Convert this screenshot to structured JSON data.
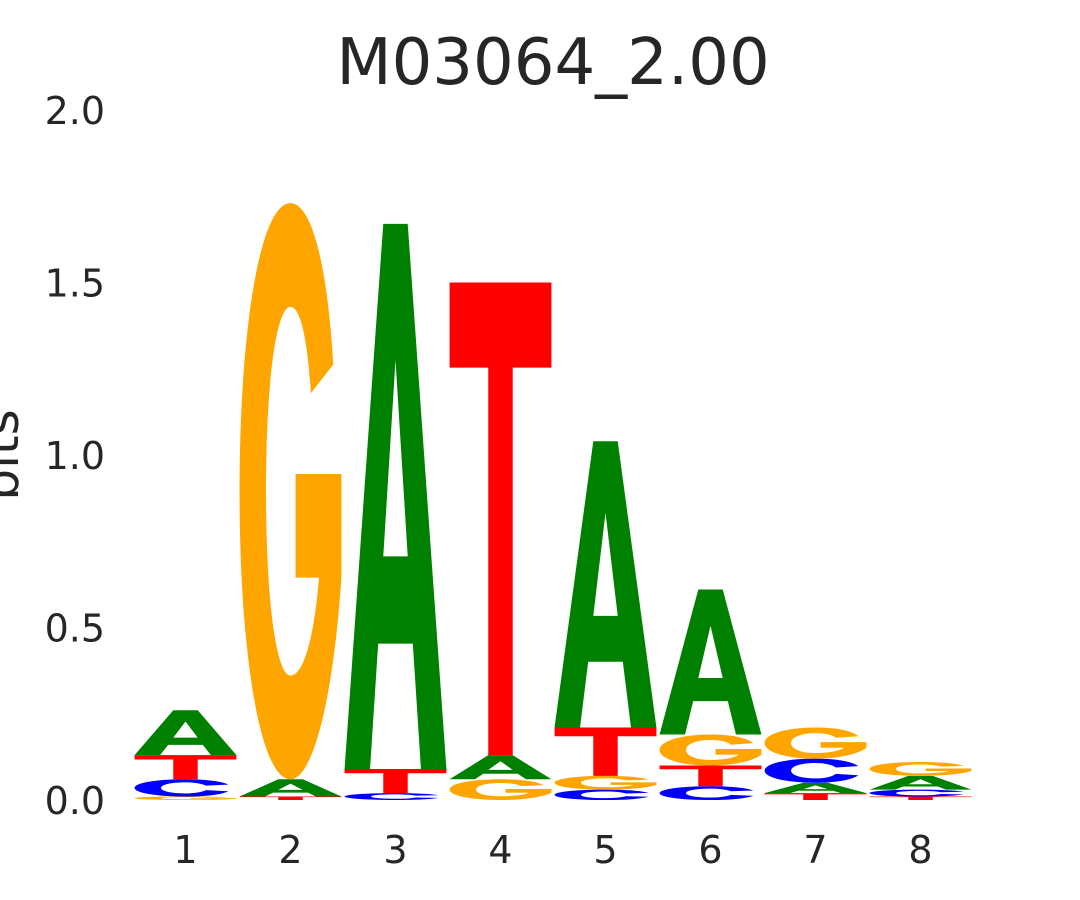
{
  "chart_data": {
    "type": "sequence-logo",
    "title": "M03064_2.00",
    "xlabel": "",
    "ylabel": "bits",
    "ylim": [
      0,
      2.0
    ],
    "y_ticks": [
      "0.0",
      "0.5",
      "1.0",
      "1.5",
      "2.0"
    ],
    "categories": [
      "1",
      "2",
      "3",
      "4",
      "5",
      "6",
      "7",
      "8"
    ],
    "grid": false,
    "legend": "none",
    "colors": {
      "A": "#008000",
      "C": "#0000ff",
      "G": "#ffa500",
      "T": "#ff0000"
    },
    "positions": [
      {
        "position": "1",
        "stack": [
          {
            "letter": "G",
            "bits": 0.01
          },
          {
            "letter": "C",
            "bits": 0.05
          },
          {
            "letter": "T",
            "bits": 0.07
          },
          {
            "letter": "A",
            "bits": 0.13
          }
        ]
      },
      {
        "position": "2",
        "stack": [
          {
            "letter": "T",
            "bits": 0.01
          },
          {
            "letter": "A",
            "bits": 0.05
          },
          {
            "letter": "G",
            "bits": 1.67
          }
        ]
      },
      {
        "position": "3",
        "stack": [
          {
            "letter": "C",
            "bits": 0.02
          },
          {
            "letter": "T",
            "bits": 0.07
          },
          {
            "letter": "A",
            "bits": 1.58
          }
        ]
      },
      {
        "position": "4",
        "stack": [
          {
            "letter": "G",
            "bits": 0.06
          },
          {
            "letter": "A",
            "bits": 0.07
          },
          {
            "letter": "T",
            "bits": 1.37
          }
        ]
      },
      {
        "position": "5",
        "stack": [
          {
            "letter": "C",
            "bits": 0.03
          },
          {
            "letter": "G",
            "bits": 0.04
          },
          {
            "letter": "T",
            "bits": 0.14
          },
          {
            "letter": "A",
            "bits": 0.83
          }
        ]
      },
      {
        "position": "6",
        "stack": [
          {
            "letter": "C",
            "bits": 0.04
          },
          {
            "letter": "T",
            "bits": 0.06
          },
          {
            "letter": "G",
            "bits": 0.09
          },
          {
            "letter": "A",
            "bits": 0.42
          }
        ]
      },
      {
        "position": "7",
        "stack": [
          {
            "letter": "T",
            "bits": 0.02
          },
          {
            "letter": "A",
            "bits": 0.03
          },
          {
            "letter": "C",
            "bits": 0.07
          },
          {
            "letter": "G",
            "bits": 0.09
          }
        ]
      },
      {
        "position": "8",
        "stack": [
          {
            "letter": "T",
            "bits": 0.01
          },
          {
            "letter": "C",
            "bits": 0.02
          },
          {
            "letter": "A",
            "bits": 0.04
          },
          {
            "letter": "G",
            "bits": 0.04
          }
        ]
      }
    ]
  }
}
